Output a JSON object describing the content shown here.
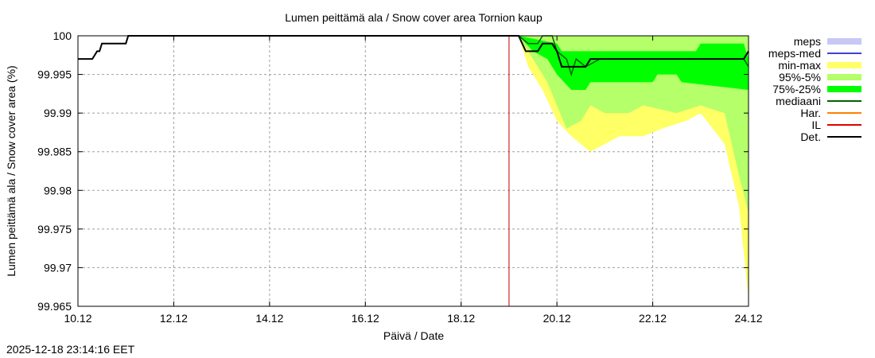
{
  "chart_data": {
    "type": "area",
    "title": "Lumen peittämä ala / Snow cover area Tornion kaup",
    "xlabel": "Päivä / Date",
    "ylabel": "Lumen peittämä ala / Snow cover area (%)",
    "x_ticks": [
      "10.12",
      "12.12",
      "14.12",
      "16.12",
      "18.12",
      "20.12",
      "22.12",
      "24.12"
    ],
    "y_ticks": [
      "100",
      "99.995",
      "99.99",
      "99.985",
      "99.98",
      "99.975",
      "99.97",
      "99.965"
    ],
    "ylim": [
      99.965,
      100
    ],
    "xlim_days": [
      10,
      24
    ],
    "grid": true,
    "forecast_start_day": 19.0,
    "legend": [
      {
        "label": "meps",
        "kind": "band",
        "color": "#c8c8f5"
      },
      {
        "label": "meps-med",
        "kind": "line",
        "color": "#4040d0"
      },
      {
        "label": "min-max",
        "kind": "band",
        "color": "#ffff66"
      },
      {
        "label": "95%-5%",
        "kind": "band",
        "color": "#b4ff6a"
      },
      {
        "label": "75%-25%",
        "kind": "band",
        "color": "#00ff00"
      },
      {
        "label": "mediaani",
        "kind": "line",
        "color": "#006400"
      },
      {
        "label": "Har.",
        "kind": "line",
        "color": "#ff8000"
      },
      {
        "label": "IL",
        "kind": "line",
        "color": "#e00000"
      },
      {
        "label": "Det.",
        "kind": "line",
        "color": "#000000"
      }
    ],
    "series": [
      {
        "name": "Det.",
        "x": [
          10.0,
          10.3,
          10.4,
          10.45,
          10.5,
          11.0,
          11.05,
          19.2,
          19.35,
          19.6,
          19.7,
          19.9,
          20.0,
          20.1,
          20.6,
          20.7,
          23.9,
          24.0
        ],
        "y": [
          99.997,
          99.997,
          99.998,
          99.998,
          99.999,
          99.999,
          100,
          100,
          99.998,
          99.998,
          99.999,
          99.999,
          99.998,
          99.996,
          99.996,
          99.997,
          99.997,
          99.998
        ]
      },
      {
        "name": "mediaani",
        "x": [
          19.2,
          19.4,
          19.6,
          19.7,
          19.9,
          20.0,
          20.2,
          20.3,
          20.4,
          20.6,
          20.9,
          23.9,
          24.0
        ],
        "y": [
          100,
          99.999,
          99.999,
          100,
          100,
          99.998,
          99.997,
          99.995,
          99.997,
          99.996,
          99.997,
          99.997,
          99.996
        ]
      },
      {
        "name": "75%-25% upper",
        "x": [
          19.2,
          20.0,
          20.1,
          20.3,
          20.5,
          22.9,
          23.0,
          23.9,
          24.0
        ],
        "y": [
          100,
          99.999,
          99.998,
          99.998,
          99.998,
          99.998,
          99.999,
          99.999,
          99.997
        ]
      },
      {
        "name": "75%-25% lower",
        "x": [
          19.2,
          19.5,
          19.8,
          20.0,
          20.3,
          20.6,
          20.7,
          22.0,
          22.1,
          22.5,
          22.6,
          24.0
        ],
        "y": [
          100,
          99.998,
          99.997,
          99.995,
          99.993,
          99.993,
          99.994,
          99.994,
          99.995,
          99.995,
          99.994,
          99.993
        ]
      },
      {
        "name": "95%-5% upper",
        "x": [
          19.2,
          20.0,
          24.0
        ],
        "y": [
          100,
          100,
          100
        ]
      },
      {
        "name": "95%-5% lower",
        "x": [
          19.2,
          19.5,
          19.8,
          20.0,
          20.2,
          20.5,
          20.7,
          21.0,
          21.5,
          21.8,
          22.5,
          23.0,
          23.5,
          23.8,
          24.0
        ],
        "y": [
          100,
          99.997,
          99.994,
          99.991,
          99.988,
          99.989,
          99.991,
          99.99,
          99.99,
          99.991,
          99.99,
          99.991,
          99.99,
          99.982,
          99.977
        ]
      },
      {
        "name": "min-max lower",
        "x": [
          19.2,
          19.4,
          19.7,
          20.0,
          20.3,
          20.5,
          20.7,
          21.0,
          21.3,
          21.8,
          22.2,
          22.7,
          23.0,
          23.5,
          23.8,
          24.0
        ],
        "y": [
          100,
          99.996,
          99.993,
          99.989,
          99.987,
          99.986,
          99.985,
          99.986,
          99.987,
          99.987,
          99.988,
          99.989,
          99.99,
          99.986,
          99.978,
          99.966
        ]
      }
    ]
  },
  "footer": {
    "timestamp": "2025-12-18 23:14:16 EET"
  }
}
